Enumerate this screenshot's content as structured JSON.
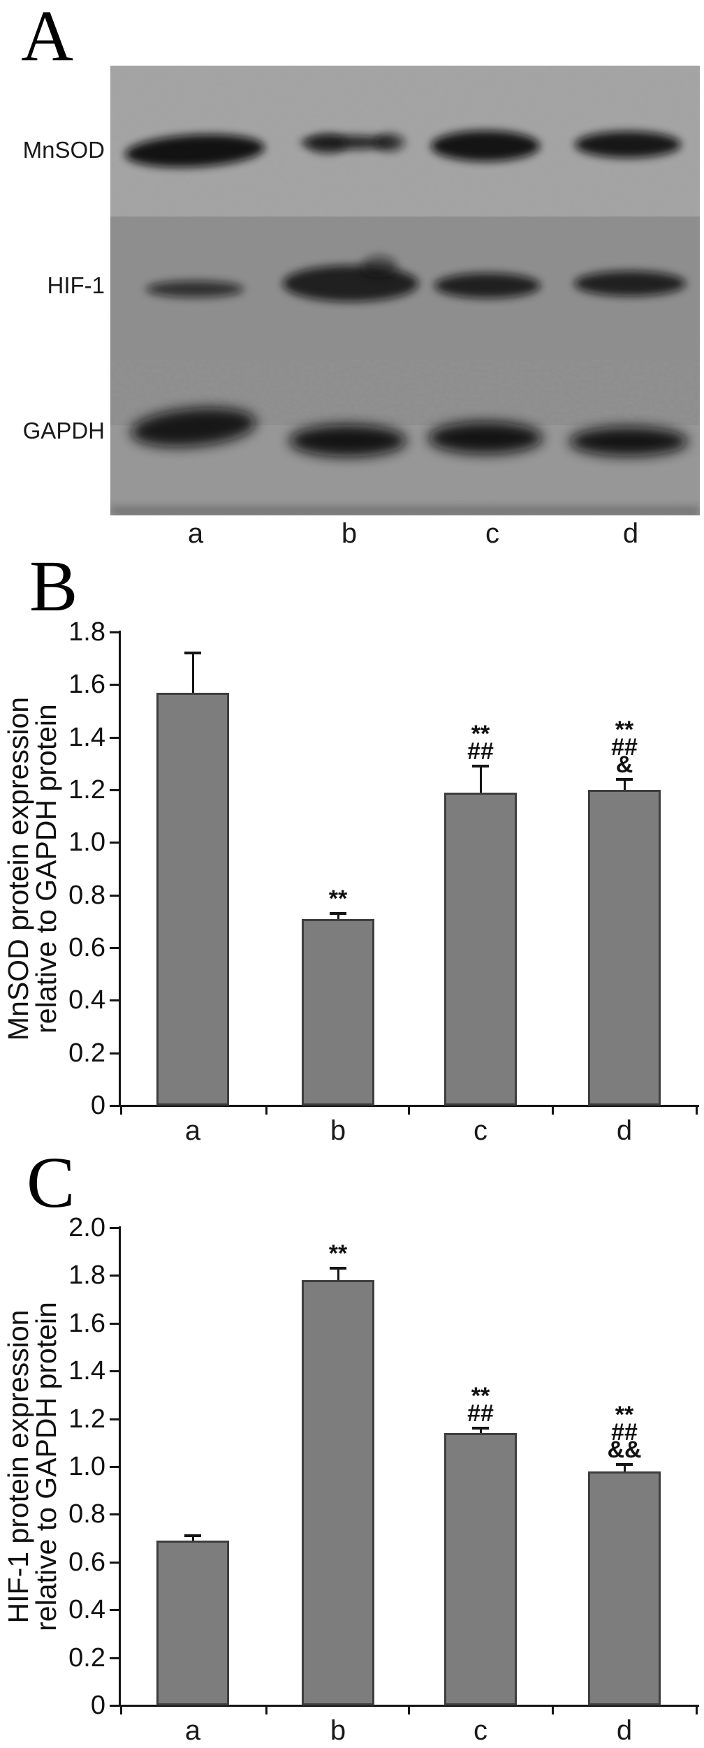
{
  "panel_a": {
    "label": "A",
    "row_labels": [
      "MnSOD",
      "HIF-1",
      "GAPDH"
    ],
    "lane_labels": [
      "a",
      "b",
      "c",
      "d"
    ]
  },
  "chart_data": [
    {
      "type": "bar",
      "panel_label": "B",
      "categories": [
        "a",
        "b",
        "c",
        "d"
      ],
      "values": [
        1.57,
        0.71,
        1.19,
        1.2
      ],
      "errors": [
        0.15,
        0.02,
        0.1,
        0.04
      ],
      "annotations": [
        [],
        [
          "**"
        ],
        [
          "**",
          "##"
        ],
        [
          "**",
          "##",
          "&"
        ]
      ],
      "ylabel": "MnSOD protein expression\nrelative to GAPDH protein",
      "xlabel": "",
      "ylim": [
        0,
        1.8
      ],
      "ytick_step": 0.2,
      "ytick_labels": [
        "1.8",
        "1.6",
        "1.4",
        "1.2",
        "1.0",
        "0.8",
        "0.6",
        "0.4",
        "0.2",
        "0"
      ],
      "grid": false,
      "legend": null,
      "bar_color": "#7d7d7d"
    },
    {
      "type": "bar",
      "panel_label": "C",
      "categories": [
        "a",
        "b",
        "c",
        "d"
      ],
      "values": [
        0.69,
        1.78,
        1.14,
        0.98
      ],
      "errors": [
        0.02,
        0.05,
        0.02,
        0.03
      ],
      "annotations": [
        [],
        [
          "**"
        ],
        [
          "**",
          "##"
        ],
        [
          "**",
          "##",
          "&&"
        ]
      ],
      "ylabel": "HIF-1 protein expression\nrelative to GAPDH protein",
      "xlabel": "",
      "ylim": [
        0,
        2.0
      ],
      "ytick_step": 0.2,
      "ytick_labels": [
        "2.0",
        "1.8",
        "1.6",
        "1.4",
        "1.2",
        "1.0",
        "0.8",
        "0.6",
        "0.4",
        "0.2",
        "0"
      ],
      "grid": false,
      "legend": null,
      "bar_color": "#7d7d7d"
    }
  ]
}
